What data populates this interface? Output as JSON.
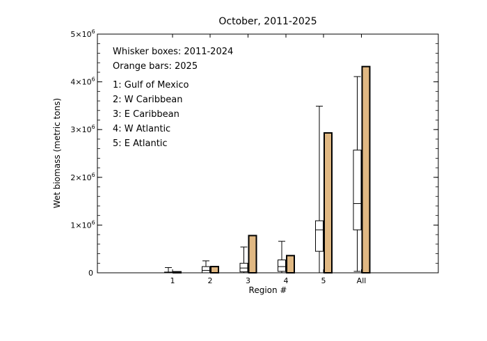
{
  "chart_data": {
    "type": "bar",
    "title": "October, 2011-2025",
    "xlabel": "Region #",
    "ylabel": "Wet biomass (metric tons)",
    "categories": [
      "1",
      "2",
      "3",
      "4",
      "5",
      "All"
    ],
    "ylim": [
      0,
      5000000
    ],
    "ytick_labels": [
      {
        "base": "0",
        "exp": ""
      },
      {
        "base": "1×10",
        "exp": "6"
      },
      {
        "base": "2×10",
        "exp": "6"
      },
      {
        "base": "3×10",
        "exp": "6"
      },
      {
        "base": "4×10",
        "exp": "6"
      },
      {
        "base": "5×10",
        "exp": "6"
      }
    ],
    "ytick_values": [
      0,
      1000000,
      2000000,
      3000000,
      4000000,
      5000000
    ],
    "annotations": [
      "Whisker boxes: 2011-2024",
      "Orange bars: 2025",
      "1: Gulf of Mexico",
      "2: W Caribbean",
      "3: E Caribbean",
      "4: W Atlantic",
      "5: E Atlantic"
    ],
    "box_series": {
      "name": "2011-2024",
      "boxes": [
        {
          "category": "1",
          "min": 0,
          "q1": 0,
          "median": 5000,
          "q3": 15000,
          "max": 110000
        },
        {
          "category": "2",
          "min": 0,
          "q1": 0,
          "median": 50000,
          "q3": 130000,
          "max": 250000
        },
        {
          "category": "3",
          "min": 0,
          "q1": 20000,
          "median": 100000,
          "q3": 200000,
          "max": 540000
        },
        {
          "category": "4",
          "min": 0,
          "q1": 30000,
          "median": 130000,
          "q3": 270000,
          "max": 660000
        },
        {
          "category": "5",
          "min": 0,
          "q1": 450000,
          "median": 900000,
          "q3": 1090000,
          "max": 3490000
        },
        {
          "category": "All",
          "min": 30000,
          "q1": 900000,
          "median": 1450000,
          "q3": 2570000,
          "max": 4110000
        }
      ]
    },
    "bar_series": {
      "name": "2025",
      "values": [
        20000,
        130000,
        780000,
        360000,
        2930000,
        4320000
      ]
    },
    "colors": {
      "bar_fill": "#E0B883",
      "bar_edge": "#000000",
      "box_fill": "#ffffff",
      "axis": "#000000"
    },
    "grid": false
  }
}
